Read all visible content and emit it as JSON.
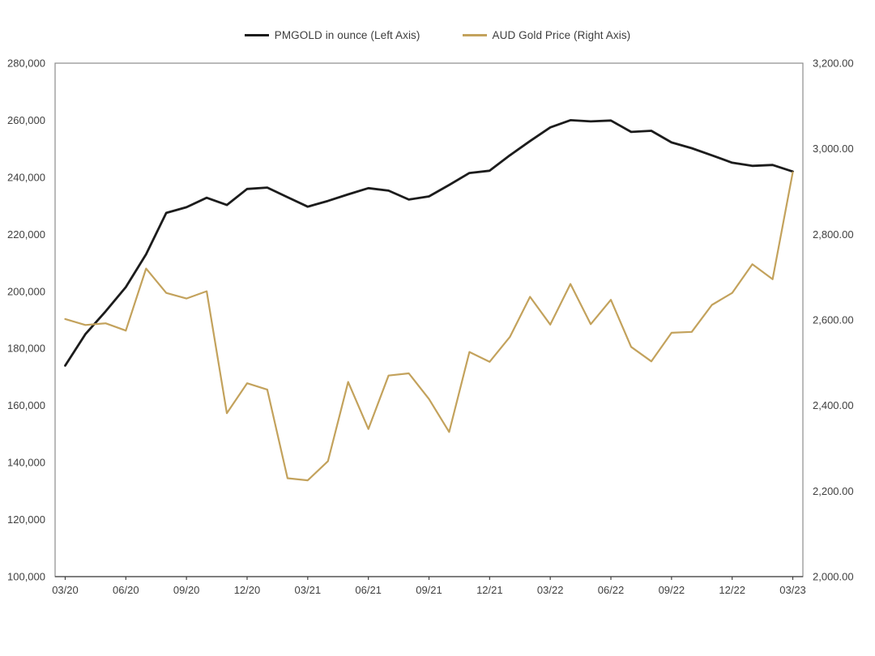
{
  "page": {
    "background": "#ffffff"
  },
  "legend": {
    "items": [
      {
        "label": "PMGOLD in ounce (Left Axis)",
        "color": "#1c1c1c"
      },
      {
        "label": "AUD Gold Price (Right Axis)",
        "color": "#c3a25c"
      }
    ]
  },
  "chart_data": {
    "type": "line",
    "title": "",
    "grid": false,
    "legend_position": "top-center",
    "x": [
      "03/20",
      "04/20",
      "05/20",
      "06/20",
      "07/20",
      "08/20",
      "09/20",
      "10/20",
      "11/20",
      "12/20",
      "01/21",
      "02/21",
      "03/21",
      "04/21",
      "05/21",
      "06/21",
      "07/21",
      "08/21",
      "09/21",
      "10/21",
      "11/21",
      "12/21",
      "01/22",
      "02/22",
      "03/22",
      "04/22",
      "05/22",
      "06/22",
      "07/22",
      "08/22",
      "09/22",
      "10/22",
      "11/22",
      "12/22",
      "01/23",
      "02/23",
      "03/23"
    ],
    "series": [
      {
        "name": "PMGOLD in ounce (Left Axis)",
        "axis": "left",
        "color": "#1c1c1c",
        "stroke_width": 2.8,
        "values": [
          174000,
          185000,
          193000,
          201500,
          213000,
          227500,
          229500,
          232800,
          230300,
          235900,
          236400,
          233000,
          229700,
          231700,
          234000,
          236200,
          235300,
          232200,
          233300,
          237300,
          241500,
          242300,
          247700,
          252700,
          257500,
          260000,
          259600,
          259900,
          255900,
          256300,
          252200,
          250200,
          247700,
          245100,
          244000,
          244300,
          242000
        ]
      },
      {
        "name": "AUD Gold Price (Right Axis)",
        "axis": "right",
        "color": "#c3a25c",
        "stroke_width": 2.2,
        "values": [
          2602,
          2588,
          2592,
          2575,
          2720,
          2663,
          2650,
          2667,
          2382,
          2452,
          2437,
          2230,
          2225,
          2270,
          2455,
          2345,
          2470,
          2475,
          2415,
          2338,
          2525,
          2502,
          2560,
          2654,
          2589,
          2684,
          2590,
          2647,
          2537,
          2503,
          2570,
          2572,
          2635,
          2663,
          2730,
          2695,
          2945
        ]
      }
    ],
    "left_axis": {
      "min": 100000,
      "max": 280000,
      "tick_step": 20000,
      "tick_labels": [
        "280,000",
        "260,000",
        "240,000",
        "220,000",
        "200,000",
        "180,000",
        "160,000",
        "140,000",
        "120,000",
        "100,000"
      ]
    },
    "right_axis": {
      "min": 2000,
      "max": 3200,
      "tick_step": 200,
      "tick_labels": [
        "3,200.00",
        "3,000.00",
        "2,800.00",
        "2,600.00",
        "2,400.00",
        "2,200.00",
        "2,000.00"
      ]
    },
    "x_axis": {
      "tick_labels": [
        "03/20",
        "06/20",
        "09/20",
        "12/20",
        "03/21",
        "06/21",
        "09/21",
        "12/21",
        "03/22",
        "06/22",
        "09/22",
        "12/22",
        "03/23"
      ],
      "tick_month_indices": [
        0,
        3,
        6,
        9,
        12,
        15,
        18,
        21,
        24,
        27,
        30,
        33,
        36
      ]
    },
    "style": {
      "plot_border_color": "#8c8c8c",
      "bottom_axis_color": "#404040",
      "axis_text_color": "#3f3f3f",
      "axis_font_size": 13
    }
  }
}
